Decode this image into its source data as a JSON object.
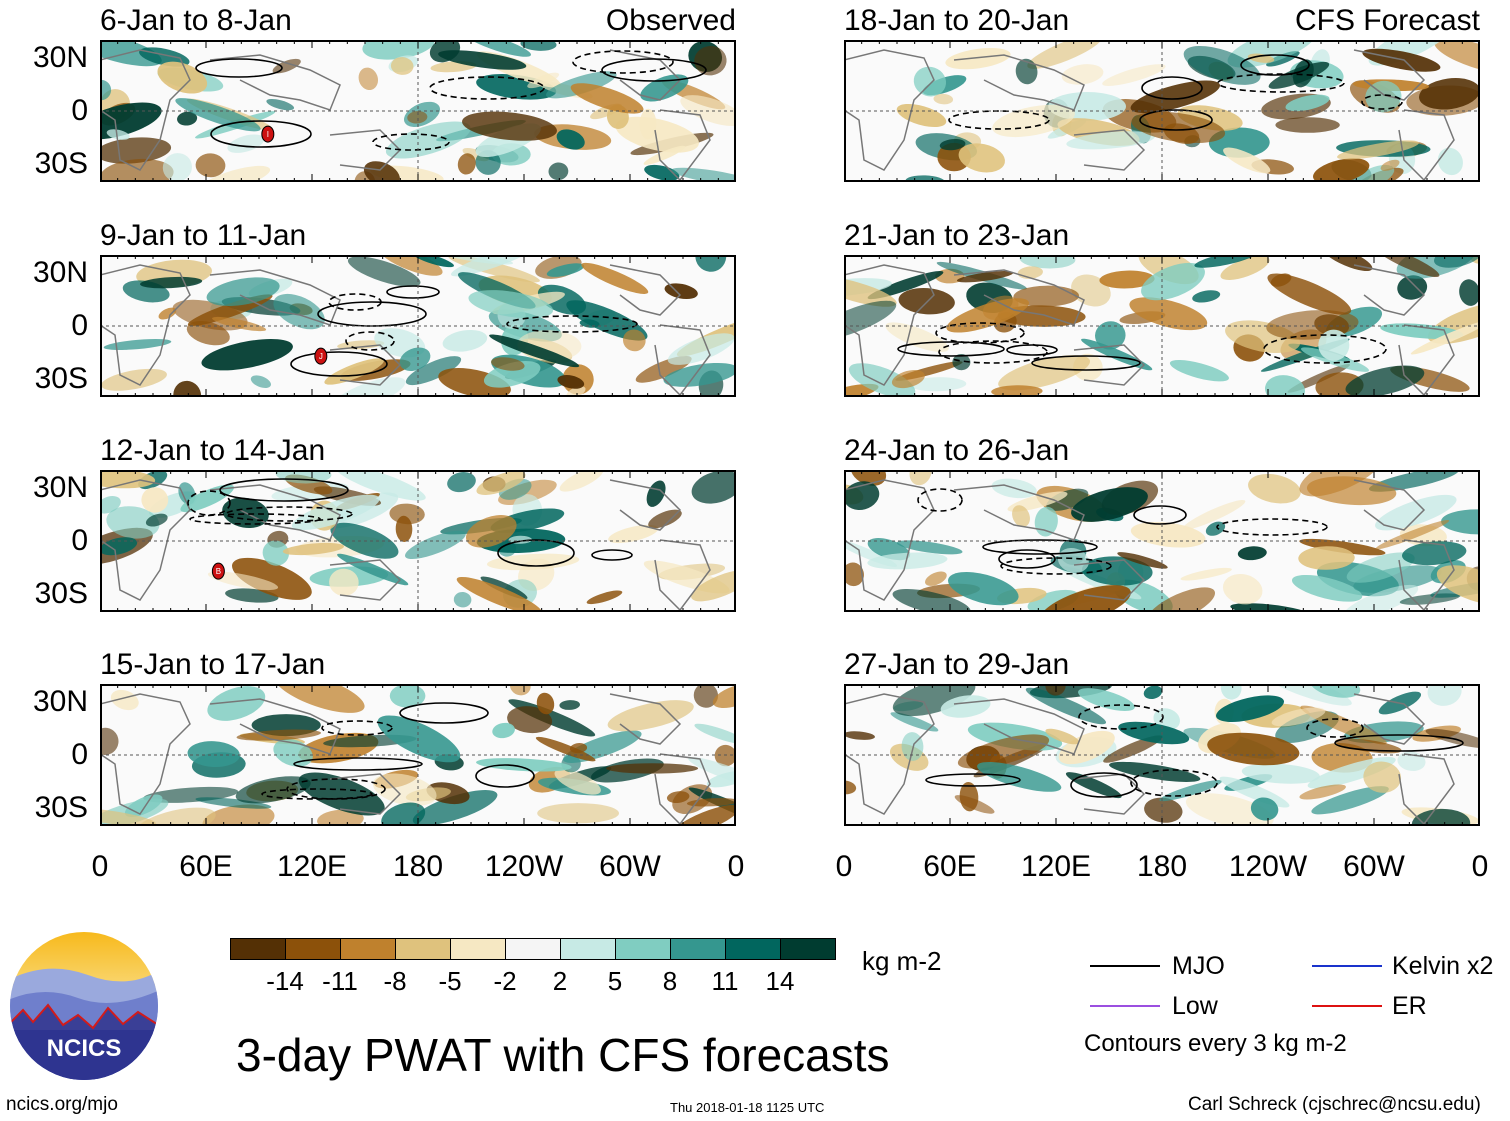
{
  "panels": [
    {
      "title": "6-Jan to 8-Jan",
      "label": "Observed"
    },
    {
      "title": "18-Jan to 20-Jan",
      "label": "CFS Forecast"
    },
    {
      "title": "9-Jan to 11-Jan",
      "label": ""
    },
    {
      "title": "21-Jan to 23-Jan",
      "label": ""
    },
    {
      "title": "12-Jan to 14-Jan",
      "label": ""
    },
    {
      "title": "24-Jan to 26-Jan",
      "label": ""
    },
    {
      "title": "15-Jan to 17-Jan",
      "label": ""
    },
    {
      "title": "27-Jan to 29-Jan",
      "label": ""
    }
  ],
  "storm_markers": [
    {
      "panel": 0,
      "letter": "I",
      "lon": 95,
      "lat": -13
    },
    {
      "panel": 2,
      "letter": "J",
      "lon": 125,
      "lat": -17
    },
    {
      "panel": 4,
      "letter": "B",
      "lon": 67,
      "lat": -17
    }
  ],
  "lat_labels": [
    "30N",
    "0",
    "30S"
  ],
  "lon_labels": [
    "0",
    "60E",
    "120E",
    "180",
    "120W",
    "60W",
    "0"
  ],
  "colorbar": {
    "colors": [
      "#543005",
      "#8c510a",
      "#bf812d",
      "#dfc27d",
      "#f6e8c3",
      "#f5f5f5",
      "#c7eae5",
      "#80cdc1",
      "#35978f",
      "#01665e",
      "#003c30"
    ],
    "labels": [
      "-14",
      "-11",
      "-8",
      "-5",
      "-2",
      "2",
      "5",
      "8",
      "11",
      "14"
    ],
    "units": "kg m-2"
  },
  "legend": {
    "items": [
      {
        "label": "MJO",
        "color": "#000000"
      },
      {
        "label": "Kelvin x2",
        "color": "#1a33cc"
      },
      {
        "label": "Low",
        "color": "#9b4fe0"
      },
      {
        "label": "ER",
        "color": "#dd1111"
      }
    ],
    "note": "Contours every 3 kg m-2"
  },
  "logo_text": "NCICS",
  "main_title": "3-day PWAT with CFS forecasts",
  "footer": {
    "url": "ncics.org/mjo",
    "timestamp": "Thu 2018-01-18 1125 UTC",
    "credit": "Carl Schreck (cjschrec@ncsu.edu)"
  }
}
